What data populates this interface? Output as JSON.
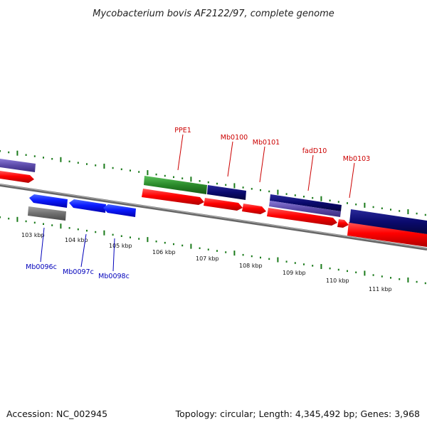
{
  "title": "Mycobacterium bovis AF2122/97, complete genome",
  "footer": {
    "accession": "Accession: NC_002945",
    "summary": "Topology: circular; Length: 4,345,492 bp; Genes: 3,968"
  },
  "colors": {
    "forward_gene": "#ff0000",
    "reverse_gene": "#0000ff",
    "label_forward": "#cc0000",
    "label_reverse": "#0000bb",
    "navy_gene": "#0a0a6e",
    "purple_gene": "#5a4aa8",
    "green_gene": "#2a8a2a",
    "gray_gene": "#707070",
    "tick_green": "#1a7a1a",
    "backbone": "#888888"
  },
  "axis": {
    "ticks": [
      "103 kbp",
      "104 kbp",
      "105 kbp",
      "106 kbp",
      "107 kbp",
      "108 kbp",
      "109 kbp",
      "110 kbp",
      "111 kbp"
    ]
  },
  "gene_labels_forward": [
    "PPE1",
    "Mb0100",
    "Mb0101",
    "fadD10",
    "Mb0103"
  ],
  "gene_labels_reverse": [
    "Mb0096c",
    "Mb0097c",
    "Mb0098c"
  ]
}
